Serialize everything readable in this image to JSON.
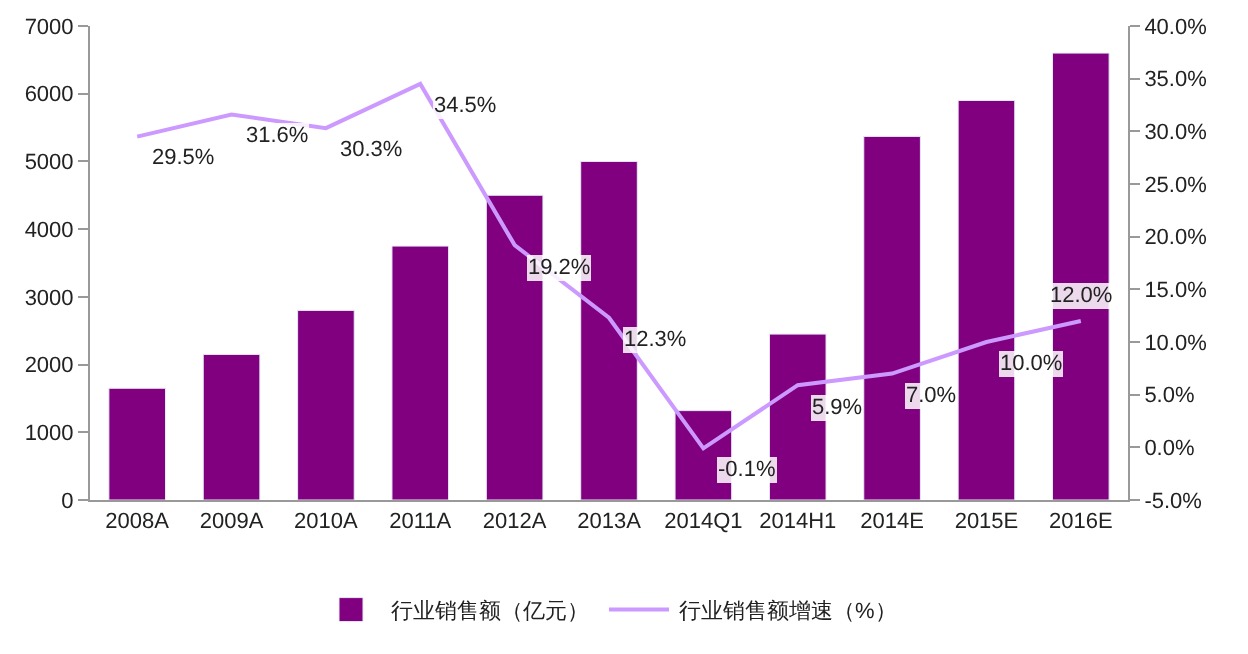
{
  "chart_data": {
    "type": "bar",
    "categories": [
      "2008A",
      "2009A",
      "2010A",
      "2011A",
      "2012A",
      "2013A",
      "2014Q1",
      "2014H1",
      "2014E",
      "2015E",
      "2016E"
    ],
    "series": [
      {
        "name": "行业销售额（亿元）",
        "color": "#800080",
        "values": [
          1650,
          2150,
          2800,
          3750,
          4500,
          5000,
          1320,
          2450,
          5370,
          5900,
          6600
        ]
      },
      {
        "name": "行业销售额增速（%）",
        "type": "line",
        "axis": "y2",
        "color": "#cc99ff",
        "values": [
          29.5,
          31.6,
          30.3,
          34.5,
          19.2,
          12.3,
          -0.1,
          5.9,
          7.0,
          10.0,
          12.0
        ],
        "value_labels": [
          "29.5%",
          "31.6%",
          "30.3%",
          "34.5%",
          "19.2%",
          "12.3%",
          "-0.1%",
          "5.9%",
          "7.0%",
          "10.0%",
          "12.0%"
        ]
      }
    ],
    "ylim": [
      0,
      7000
    ],
    "yticks": [
      0,
      1000,
      2000,
      3000,
      4000,
      5000,
      6000,
      7000
    ],
    "y2lim": [
      -5,
      40
    ],
    "y2ticks": [
      {
        "value": -5,
        "label": "-5.0%"
      },
      {
        "value": 0,
        "label": "0.0%"
      },
      {
        "value": 5,
        "label": "5.0%"
      },
      {
        "value": 10,
        "label": "10.0%"
      },
      {
        "value": 15,
        "label": "15.0%"
      },
      {
        "value": 20,
        "label": "20.0%"
      },
      {
        "value": 25,
        "label": "25.0%"
      },
      {
        "value": 30,
        "label": "30.0%"
      },
      {
        "value": 35,
        "label": "35.0%"
      },
      {
        "value": 40,
        "label": "40.0%"
      }
    ],
    "legend": "bottom",
    "marker": "none"
  }
}
